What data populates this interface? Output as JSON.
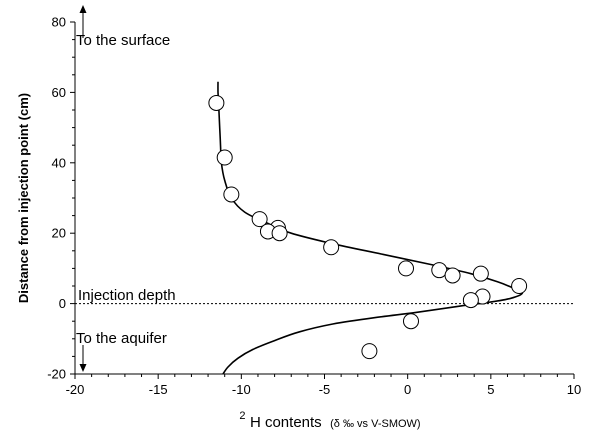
{
  "chart_data": {
    "type": "scatter",
    "xlabel": {
      "sup": "2",
      "main": "H contents",
      "small": "(δ ‰ vs V-SMOW)"
    },
    "ylabel": "Distance from injection point (cm)",
    "xlim": [
      -20,
      10
    ],
    "ylim": [
      -20,
      80
    ],
    "xticks": [
      -20,
      -15,
      -10,
      -5,
      0,
      5,
      10
    ],
    "yticks": [
      -20,
      0,
      20,
      40,
      60,
      80
    ],
    "grid": false,
    "annotations": {
      "surface": "To the surface",
      "aquifer": "To the aquifer",
      "injection": "Injection depth"
    },
    "reference_line_y": 0,
    "points": [
      {
        "x": -11.5,
        "y": 57
      },
      {
        "x": -11.0,
        "y": 41.5
      },
      {
        "x": -10.6,
        "y": 31
      },
      {
        "x": -8.9,
        "y": 24
      },
      {
        "x": -7.8,
        "y": 21.5
      },
      {
        "x": -8.4,
        "y": 20.5
      },
      {
        "x": -7.7,
        "y": 20
      },
      {
        "x": -4.6,
        "y": 16
      },
      {
        "x": -0.1,
        "y": 10
      },
      {
        "x": 1.9,
        "y": 9.5
      },
      {
        "x": 2.7,
        "y": 8
      },
      {
        "x": 4.4,
        "y": 8.5
      },
      {
        "x": 6.7,
        "y": 5
      },
      {
        "x": 4.5,
        "y": 2
      },
      {
        "x": 3.8,
        "y": 1
      },
      {
        "x": 0.2,
        "y": -5
      },
      {
        "x": -2.3,
        "y": -13.5
      }
    ],
    "fit_curve": [
      [
        -11.4,
        63
      ],
      [
        -11.4,
        60
      ],
      [
        -11.35,
        55
      ],
      [
        -11.3,
        50
      ],
      [
        -11.25,
        45
      ],
      [
        -11.2,
        40
      ],
      [
        -11.0,
        35
      ],
      [
        -10.6,
        30
      ],
      [
        -9.8,
        26
      ],
      [
        -8.5,
        23
      ],
      [
        -7.0,
        20
      ],
      [
        -4.5,
        17
      ],
      [
        -1.5,
        14
      ],
      [
        1.5,
        11
      ],
      [
        3.8,
        8.5
      ],
      [
        5.4,
        6.2
      ],
      [
        6.4,
        4.3
      ],
      [
        6.9,
        3.0
      ],
      [
        6.2,
        1.5
      ],
      [
        4.8,
        0.3
      ],
      [
        3.0,
        -0.8
      ],
      [
        0.5,
        -2.5
      ],
      [
        -2.0,
        -4.0
      ],
      [
        -4.5,
        -5.8
      ],
      [
        -6.5,
        -8.0
      ],
      [
        -8.0,
        -10.5
      ],
      [
        -9.3,
        -13.0
      ],
      [
        -10.2,
        -15.5
      ],
      [
        -10.8,
        -18.0
      ],
      [
        -11.1,
        -20
      ]
    ]
  }
}
